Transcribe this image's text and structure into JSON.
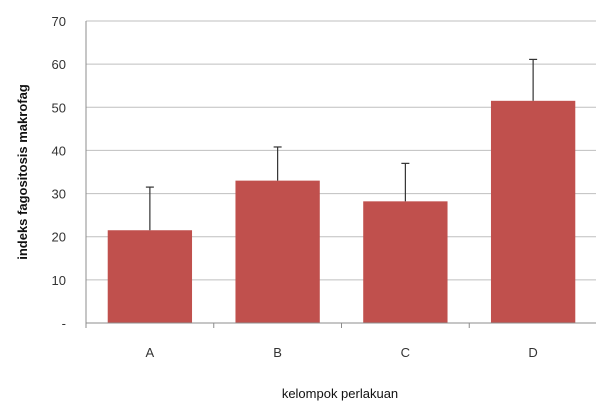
{
  "chart_data": {
    "type": "bar",
    "title": "",
    "xlabel": "kelompok perlakuan",
    "ylabel": "indeks fagositosis makrofag",
    "categories": [
      "A",
      "B",
      "C",
      "D"
    ],
    "values": [
      21.5,
      33,
      28.2,
      51.5
    ],
    "error_plus": [
      10,
      7.8,
      8.8,
      9.6
    ],
    "ylim": [
      0,
      70
    ],
    "yticks": [
      0,
      10,
      20,
      30,
      40,
      50,
      60,
      70
    ],
    "ytick_labels": [
      "-",
      "10",
      "20",
      "30",
      "40",
      "50",
      "60",
      "70"
    ],
    "grid": true,
    "legend": "none",
    "bar_color": "#c0504d",
    "grid_color": "#bfbfbf"
  }
}
